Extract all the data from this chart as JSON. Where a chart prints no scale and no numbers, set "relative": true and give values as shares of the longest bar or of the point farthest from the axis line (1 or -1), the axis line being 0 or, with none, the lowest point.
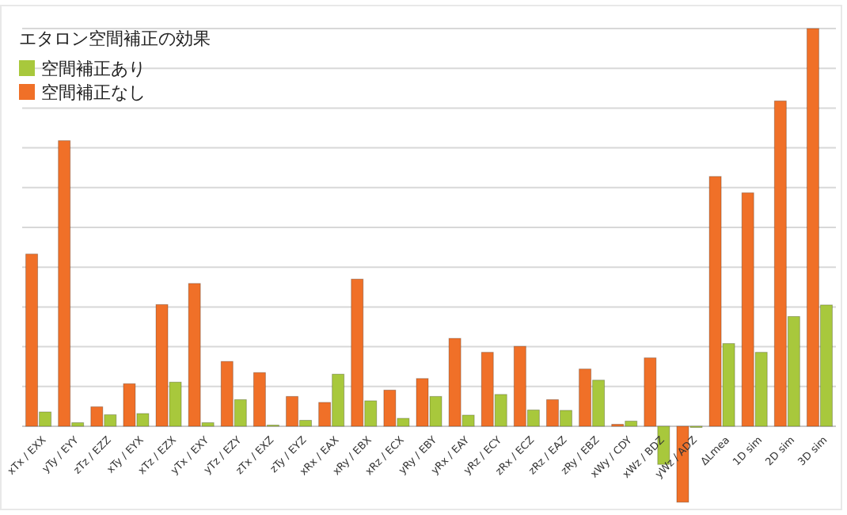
{
  "chart_data": {
    "type": "bar",
    "title": "エタロン空間補正の効果",
    "relative": true,
    "grid": "y",
    "legend": "top left",
    "categories": [
      "xTx / EXX",
      "yTy / EYY",
      "zTz / EZZ",
      "xTy / EYX",
      "xTz / EZX",
      "yTx / EXY",
      "yTz / EZY",
      "zTx / EXZ",
      "zTy / EYZ",
      "xRx / EAX",
      "xRy / EBX",
      "xRz / ECX",
      "yRy / EBY",
      "yRx / EAY",
      "yRz / ECY",
      "zRx / ECZ",
      "zRz / EAZ",
      "zRy / EBZ",
      "xWy / CDY",
      "xWz / BDZ",
      "yWz / ADZ",
      "ΔLmea",
      "1D sim",
      "2D sim",
      "3D sim"
    ],
    "series": [
      {
        "name": "空間補正あり",
        "color": "#a8c83c",
        "values": [
          0.036,
          0.009,
          0.029,
          0.032,
          0.111,
          0.009,
          0.067,
          0.003,
          0.015,
          0.131,
          0.064,
          0.02,
          0.075,
          0.028,
          0.08,
          0.041,
          0.04,
          0.116,
          0.013,
          -0.096,
          -0.003,
          0.208,
          0.186,
          0.276,
          0.305
        ]
      },
      {
        "name": "空間補正なし",
        "color": "#f07028",
        "values": [
          0.433,
          0.718,
          0.049,
          0.107,
          0.306,
          0.359,
          0.163,
          0.135,
          0.075,
          0.06,
          0.37,
          0.091,
          0.12,
          0.221,
          0.186,
          0.201,
          0.067,
          0.144,
          0.005,
          0.172,
          -0.191,
          0.628,
          0.587,
          0.818,
          1
        ]
      }
    ]
  }
}
